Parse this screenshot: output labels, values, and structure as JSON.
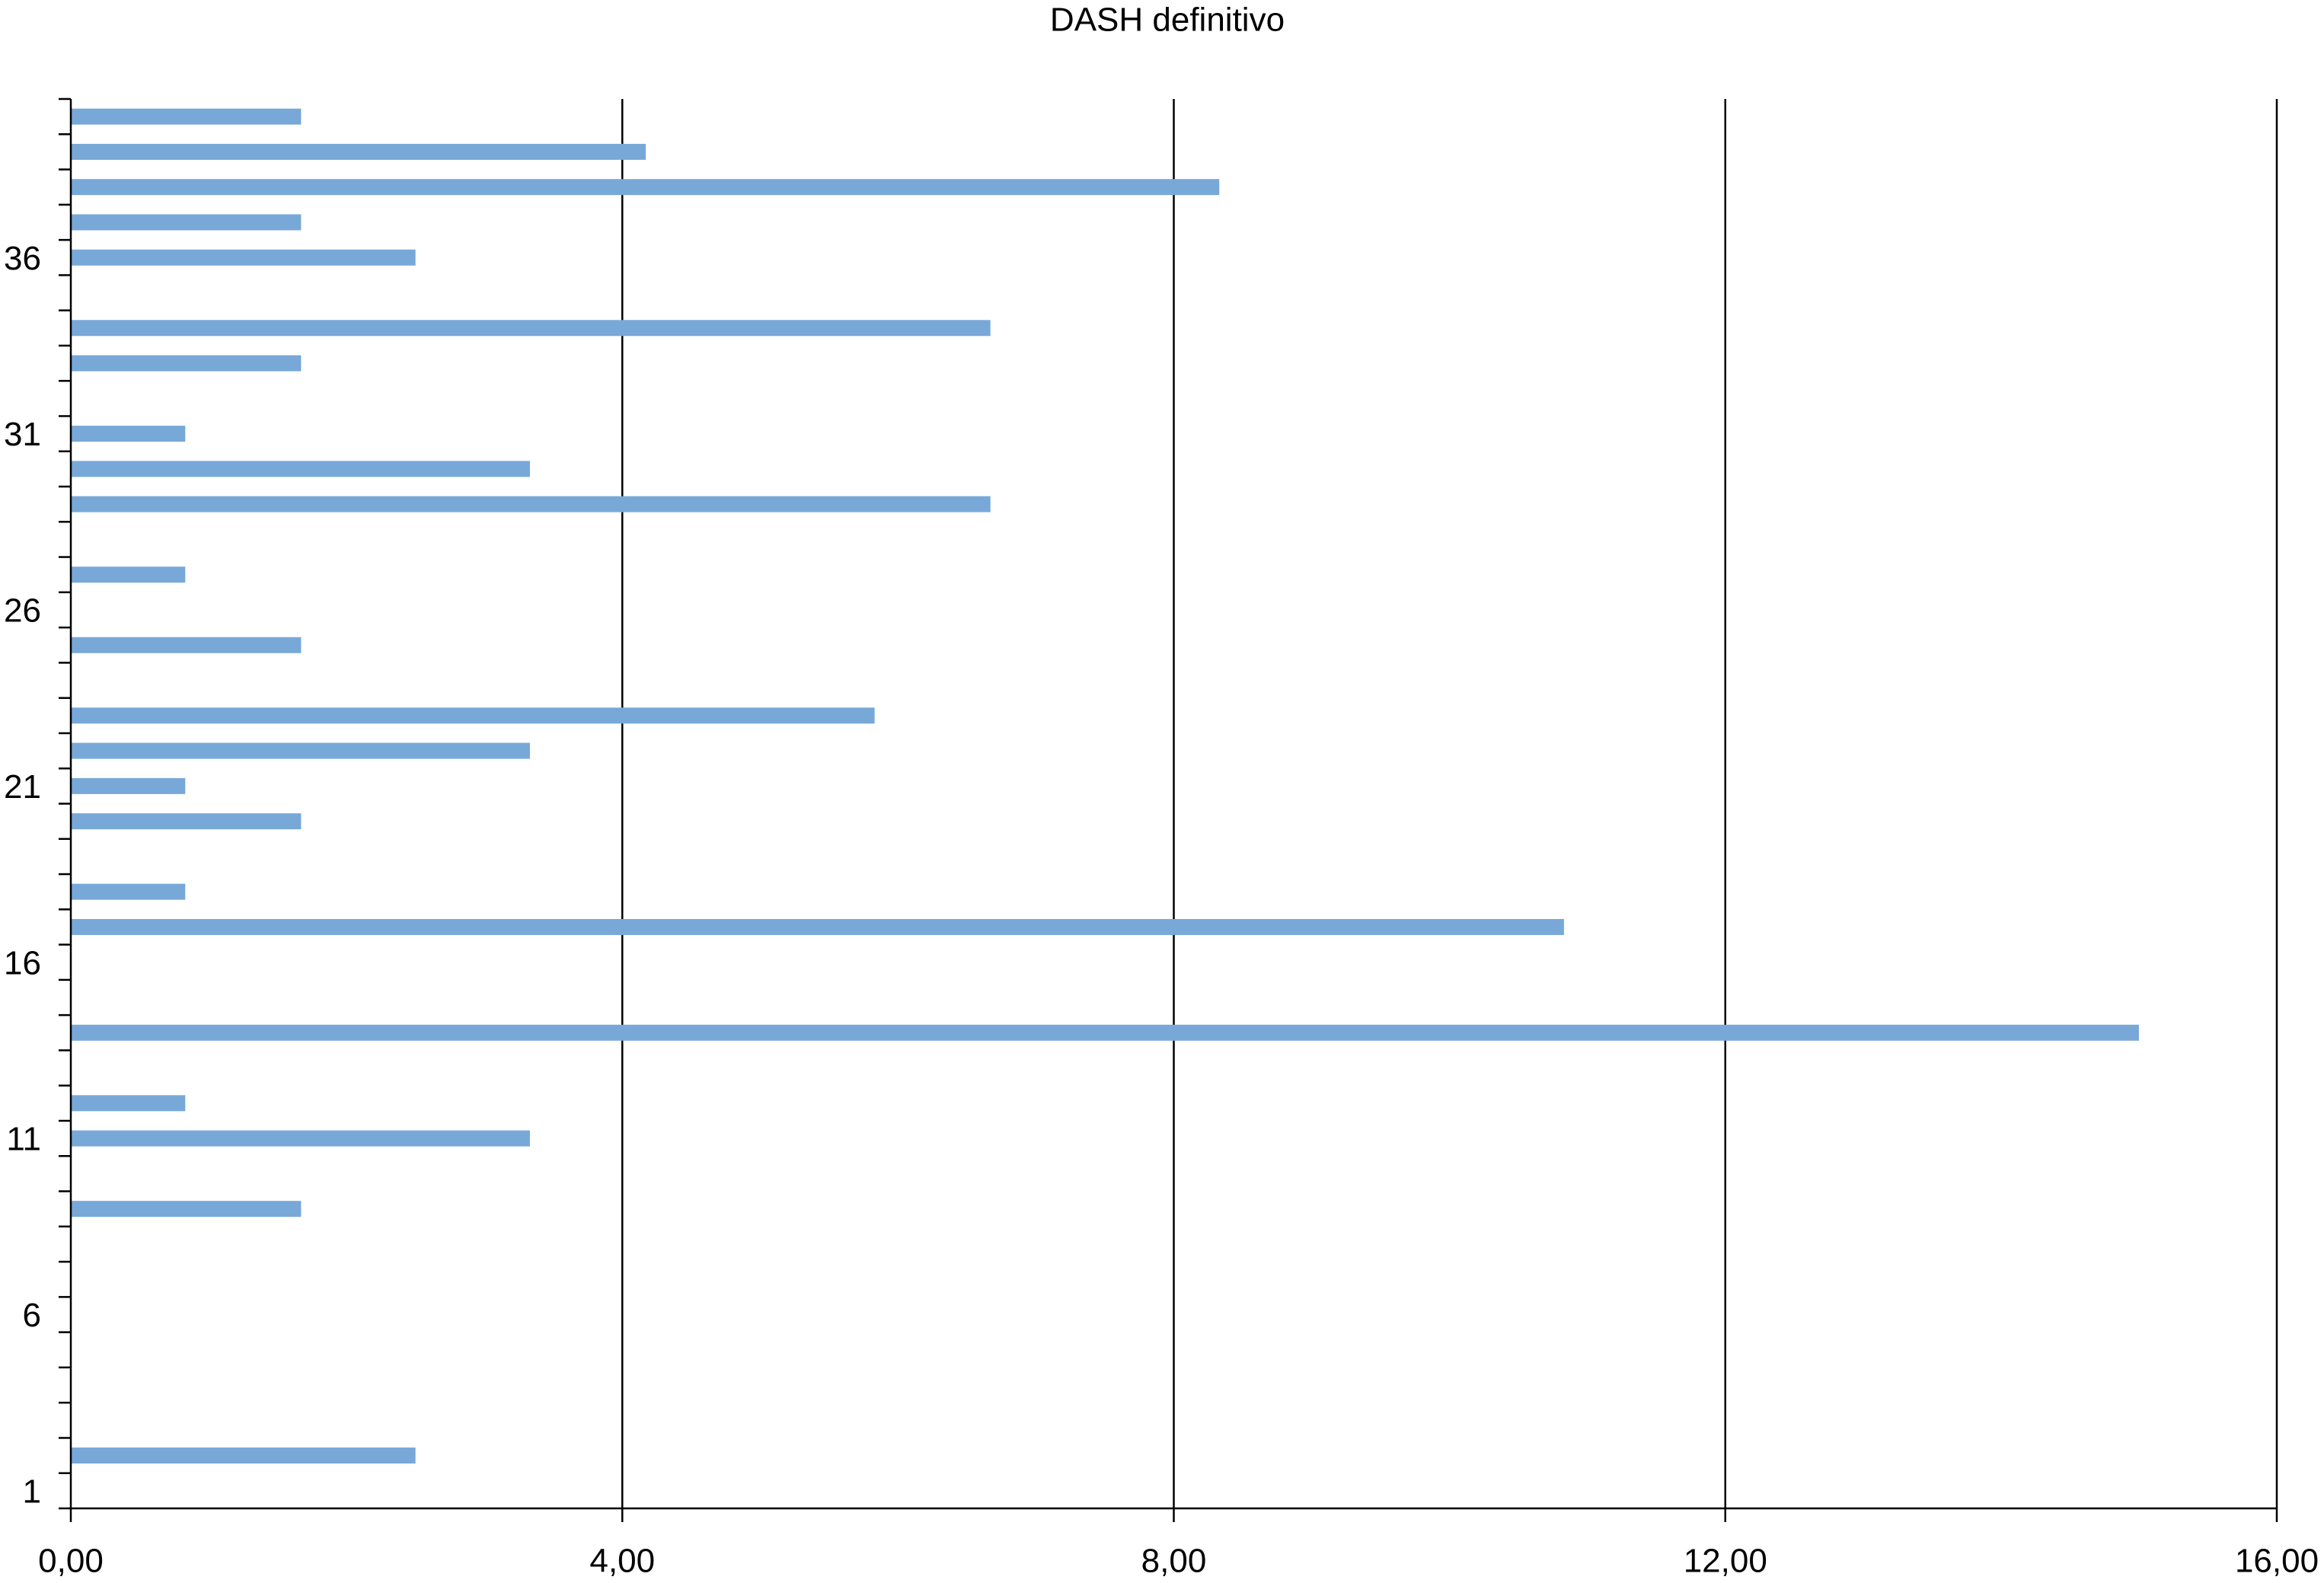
{
  "chart_data": {
    "type": "barh",
    "title": "DASH definitivo",
    "categories": [
      "1",
      null,
      null,
      null,
      null,
      "6",
      null,
      null,
      null,
      null,
      "11",
      null,
      null,
      null,
      null,
      "16",
      null,
      null,
      null,
      null,
      "21",
      null,
      null,
      null,
      null,
      "26",
      null,
      null,
      null,
      null,
      "31",
      null,
      null,
      null,
      null,
      "36",
      null,
      null,
      null,
      null
    ],
    "values": [
      null,
      2.5,
      null,
      null,
      null,
      null,
      null,
      null,
      1.67,
      null,
      3.33,
      0.83,
      null,
      15.0,
      null,
      null,
      10.83,
      0.83,
      null,
      1.67,
      0.83,
      3.33,
      5.83,
      null,
      1.67,
      null,
      0.83,
      null,
      6.67,
      3.33,
      0.83,
      null,
      1.67,
      6.67,
      null,
      2.5,
      1.67,
      8.33,
      4.17,
      1.67
    ],
    "color": "#78a8d8",
    "xlim": [
      0,
      16
    ],
    "xticks": [
      {
        "value": 0,
        "label": "0,00"
      },
      {
        "value": 4,
        "label": "4,00"
      },
      {
        "value": 8,
        "label": "8,00"
      },
      {
        "value": 12,
        "label": "12,00"
      },
      {
        "value": 16,
        "label": "16,00"
      }
    ],
    "grid": true
  }
}
